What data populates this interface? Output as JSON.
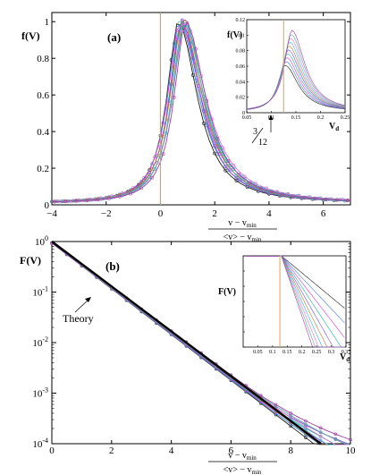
{
  "colors": [
    "#1b1b1b",
    "#3f7fd0",
    "#d03fd0",
    "#2bb3a3",
    "#7a4fd0",
    "#b07a3f",
    "#3fb0d0",
    "#d07ad0",
    "#5fa0a0",
    "#a03fa0"
  ],
  "theory_color": "#000000",
  "marker_color": "#e6a040",
  "chart_data": [
    {
      "name": "panel-a",
      "type": "line",
      "panel_label": "(a)",
      "ylabel": "f(V)",
      "xlabel_num": "v − v",
      "xlabel_num_sub": "min",
      "xlabel_den": "<v> − v",
      "xlabel_den_sub": "min",
      "xlim": [
        -4,
        7
      ],
      "ylim": [
        0,
        1.05
      ],
      "xticks": [
        -4,
        -2,
        0,
        2,
        4,
        6
      ],
      "xtick_labels": [
        "−4",
        "−2",
        "0",
        "2",
        "4",
        "6"
      ],
      "yticks": [
        0,
        0.2,
        0.4,
        0.6,
        0.8,
        1
      ],
      "ytick_labels": [
        "0",
        "0.2",
        "0.4",
        "0.6",
        "0.8",
        "1"
      ],
      "vline_x": 0,
      "peak_x": 0.8,
      "inset": {
        "ylabel": "f(V)",
        "xlabel": "V",
        "xlabel_sub": "d",
        "xlim": [
          0.05,
          0.25
        ],
        "ylim": [
          0,
          0.12
        ],
        "xticks": [
          0.05,
          0.1,
          0.15,
          0.2,
          0.25
        ],
        "xtick_labels": [
          "0.05",
          "0.1",
          "0.15",
          "0.2",
          "0.25"
        ],
        "yticks": [
          0,
          0.02,
          0.04,
          0.06,
          0.08,
          0.1,
          0.12
        ],
        "ytick_labels": [
          "0",
          "0.02",
          "0.04",
          "0.06",
          "0.08",
          "0.1",
          "0.12"
        ],
        "vline_x": 0.125,
        "annotation_num": "3",
        "annotation_den": "12"
      }
    },
    {
      "name": "panel-b",
      "type": "line",
      "panel_label": "(b)",
      "ylabel": "F(V)",
      "xlabel_num": "v − v",
      "xlabel_num_sub": "min",
      "xlabel_den": "<v> − v",
      "xlabel_den_sub": "min",
      "xlim": [
        0,
        10
      ],
      "ylim_log": [
        -4,
        0
      ],
      "xticks": [
        0,
        2,
        4,
        6,
        8,
        10
      ],
      "xtick_labels": [
        "0",
        "2",
        "4",
        "6",
        "8",
        "10"
      ],
      "yticks_exp": [
        0,
        -1,
        -2,
        -3,
        -4
      ],
      "ytick_base": "10",
      "ytick_exps": [
        "0",
        "-1",
        "-2",
        "-3",
        "-4"
      ],
      "theory_label": "Theory",
      "theory_slope_decades_per_unit": -0.444,
      "inset": {
        "ylabel": "F(V)",
        "xlabel": "V",
        "xlabel_sub": "d",
        "xlim": [
          0,
          0.35
        ],
        "ylim_log": [
          -6,
          0
        ],
        "xticks": [
          0.05,
          0.1,
          0.15,
          0.2,
          0.25,
          0.3,
          0.35
        ],
        "xtick_labels": [
          "0.05",
          "0.1",
          "0.15",
          "0.2",
          "0.25",
          "0.3",
          "0.35"
        ],
        "vline_x": 0.125
      }
    }
  ]
}
